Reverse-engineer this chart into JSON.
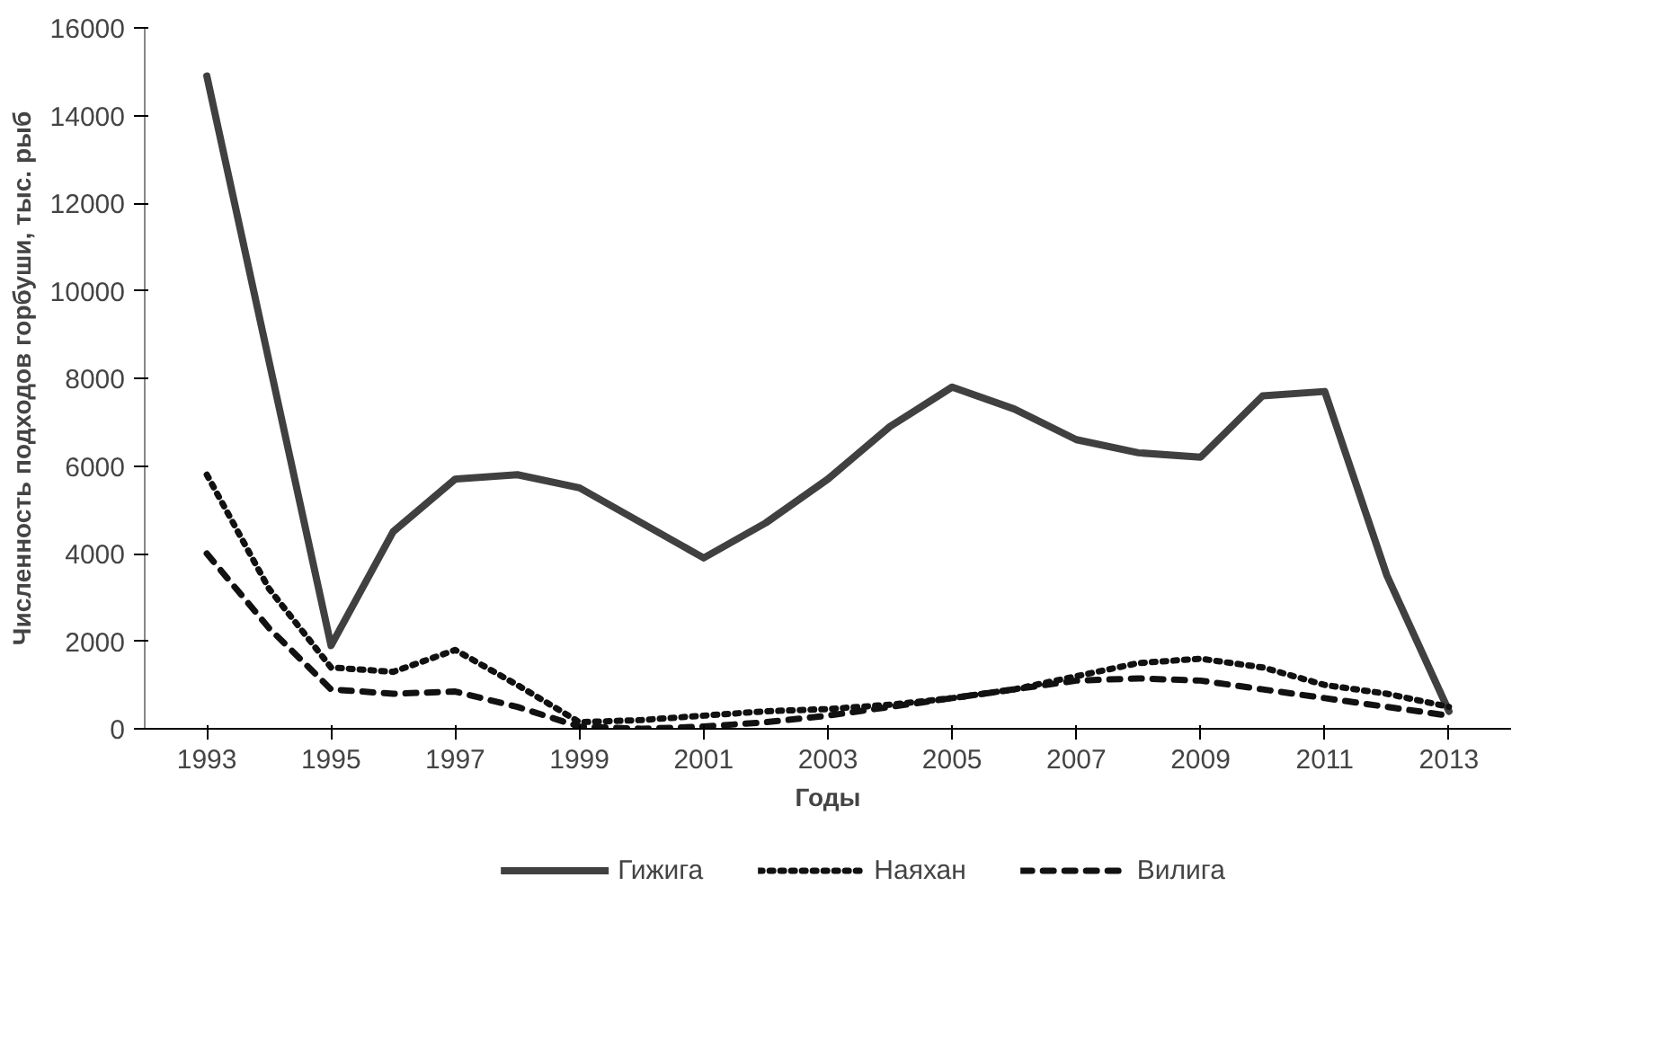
{
  "chart_data": {
    "type": "line",
    "xlabel": "Годы",
    "ylabel": "Численность подходов горбуши, тыс. рыб",
    "x": [
      1993,
      1994,
      1995,
      1996,
      1997,
      1998,
      1999,
      2000,
      2001,
      2002,
      2003,
      2004,
      2005,
      2006,
      2007,
      2008,
      2009,
      2010,
      2011,
      2012,
      2013
    ],
    "series": [
      {
        "name": "Гижига",
        "color": "#404040",
        "line_style": "solid",
        "values": [
          14900,
          8400,
          1900,
          4500,
          5700,
          5800,
          5500,
          4700,
          3900,
          4700,
          5700,
          6900,
          7800,
          7300,
          6600,
          6300,
          6200,
          7600,
          7700,
          3500,
          400
        ]
      },
      {
        "name": "Наяхан",
        "color": "#111111",
        "line_style": "dotted",
        "values": [
          5800,
          3200,
          1400,
          1300,
          1800,
          1000,
          150,
          200,
          300,
          400,
          450,
          550,
          700,
          900,
          1200,
          1500,
          1600,
          1400,
          1000,
          800,
          500
        ]
      },
      {
        "name": "Вилига",
        "color": "#111111",
        "line_style": "dashed",
        "values": [
          4000,
          2300,
          900,
          800,
          850,
          500,
          50,
          0,
          50,
          150,
          300,
          500,
          700,
          900,
          1100,
          1150,
          1100,
          900,
          700,
          500,
          300
        ]
      }
    ],
    "xlim": [
      1992,
      2014
    ],
    "xticks": [
      1993,
      1995,
      1997,
      1999,
      2001,
      2003,
      2005,
      2007,
      2009,
      2011,
      2013
    ],
    "ylim": [
      0,
      16000
    ],
    "yticks": [
      0,
      2000,
      4000,
      6000,
      8000,
      10000,
      12000,
      14000,
      16000
    ],
    "grid": false,
    "legend": "bottom",
    "marker": "none"
  }
}
